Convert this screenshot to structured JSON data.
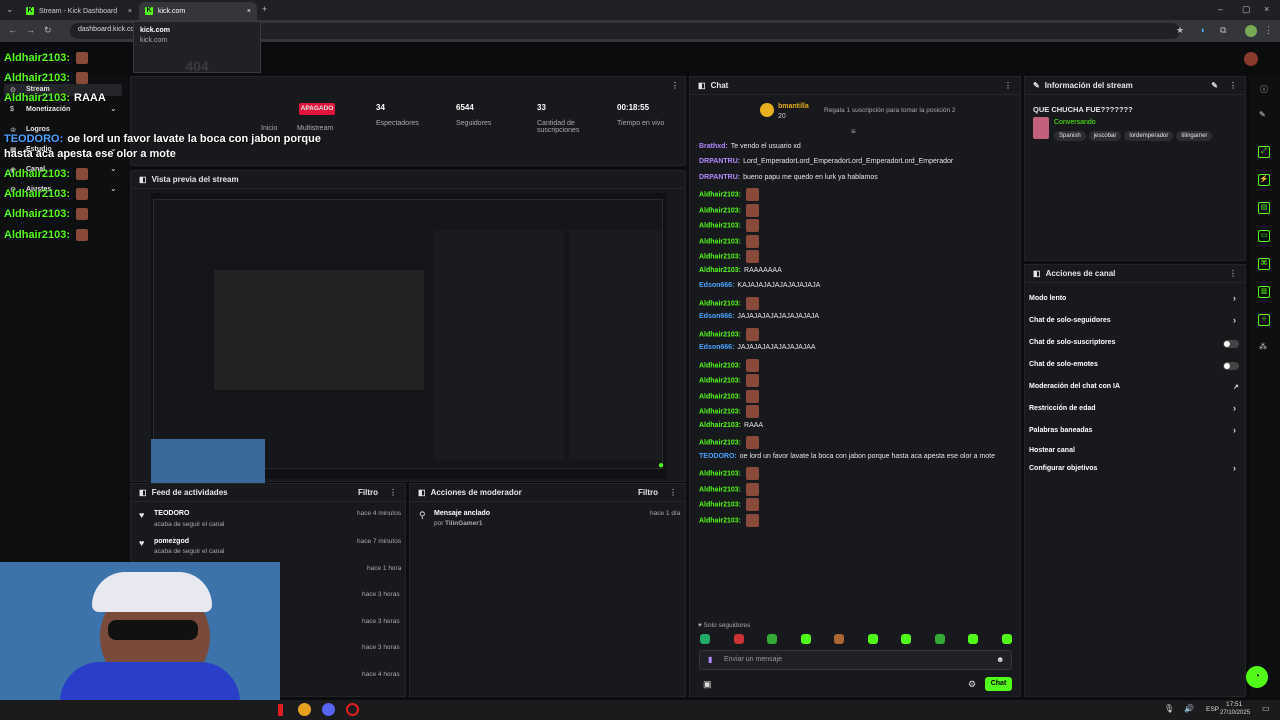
{
  "browser": {
    "tabs": [
      {
        "label": "Stream - Kick Dashboard",
        "active": false
      },
      {
        "label": "kick.com",
        "active": true
      }
    ],
    "url": "dashboard.kick.co",
    "dropdown": {
      "title": "kick.com",
      "subtitle": "kick.com"
    }
  },
  "overlay": {
    "lines": [
      {
        "user": "Aldhair2103:",
        "text": ""
      },
      {
        "user": "Aldhair2103:",
        "text": ""
      },
      {
        "user": "Aldhair2103:",
        "text": "RAAA"
      },
      {
        "user": "TEODORO:",
        "text": "oe lord un favor lavate la boca con jabon porque"
      },
      {
        "user": "",
        "text": "hasta aca apesta ese olor a mote"
      },
      {
        "user": "Aldhair2103:",
        "text": ""
      },
      {
        "user": "Aldhair2103:",
        "text": ""
      },
      {
        "user": "Aldhair2103:",
        "text": ""
      },
      {
        "user": "Aldhair2103:",
        "text": ""
      }
    ],
    "menu": [
      "Stream",
      "Monetización",
      "Logros",
      "Estudio",
      "Canal",
      "Ajustes"
    ]
  },
  "stats": {
    "status": "APAGADO",
    "status_label": "Multistream",
    "left_label": "Inicio",
    "items": [
      {
        "value": "34",
        "label": "Espectadores"
      },
      {
        "value": "6544",
        "label": "Seguidores"
      },
      {
        "value": "33",
        "label": "Cantidad de suscripciones"
      },
      {
        "value": "00:18:55",
        "label": "Tiempo en vivo"
      }
    ]
  },
  "preview": {
    "title": "Vista previa del stream",
    "counter": "404"
  },
  "feed": {
    "title": "Feed de actividades",
    "filter": "Filtro",
    "items": [
      {
        "name": "TEODORO",
        "sub": "acaba de seguir el canal",
        "time": "hace 4 minutos"
      },
      {
        "name": "pomezgod",
        "sub": "acaba de seguir el canal",
        "time": "hace 7 minutos"
      },
      {
        "name": "",
        "sub": "",
        "time": "hace 1 hora"
      },
      {
        "name": "",
        "sub": "",
        "time": "hace 3 horas"
      },
      {
        "name": "",
        "sub": "",
        "time": "hace 3 horas"
      },
      {
        "name": "",
        "sub": "",
        "time": "hace 3 horas"
      },
      {
        "name": "",
        "sub": "",
        "time": "hace 4 horas"
      }
    ]
  },
  "mod": {
    "title": "Acciones de moderador",
    "filter": "Filtro",
    "item": {
      "title": "Mensaje anclado",
      "by": "por",
      "user": "TilinGamer1",
      "time": "hace 1 día"
    }
  },
  "chat": {
    "title": "Chat",
    "pinned": {
      "user": "bmantilla",
      "count": "20",
      "text": "Regala 1 suscripción para tomar la posición 2"
    },
    "messages": [
      {
        "user": "Brathxd:",
        "text": "Te vendo el usuario xd",
        "color": "purple",
        "emotes": 0
      },
      {
        "user": "DRPANTRU:",
        "text": "Lord_EmperadorLord_EmperadorLord_EmperadorLord_Emperador",
        "color": "purple",
        "emotes": 0
      },
      {
        "user": "DRPANTRU:",
        "text": "bueno papu me quedo en lurk ya hablamos",
        "color": "purple",
        "emotes": 0
      },
      {
        "user": "Aldhair2103:",
        "text": "",
        "color": "green",
        "emotes": 1
      },
      {
        "user": "Aldhair2103:",
        "text": "",
        "color": "green",
        "emotes": 1
      },
      {
        "user": "Aldhair2103:",
        "text": "",
        "color": "green",
        "emotes": 1
      },
      {
        "user": "Aldhair2103:",
        "text": "",
        "color": "green",
        "emotes": 1
      },
      {
        "user": "Aldhair2103:",
        "text": "",
        "color": "green",
        "emotes": 1
      },
      {
        "user": "Aldhair2103:",
        "text": "RAAAAAAA",
        "color": "green",
        "emotes": 0
      },
      {
        "user": "Edson666:",
        "text": "KAJAJAJAJAJAJAJAJAJA",
        "color": "blue",
        "emotes": 0
      },
      {
        "user": "Aldhair2103:",
        "text": "",
        "color": "green",
        "emotes": 1
      },
      {
        "user": "Edson666:",
        "text": "JAJAJAJAJAJAJAJAJAJA",
        "color": "blue",
        "emotes": 0
      },
      {
        "user": "Aldhair2103:",
        "text": "",
        "color": "green",
        "emotes": 1
      },
      {
        "user": "Edson666:",
        "text": "JAJAJAJAJAJAJAJAJAA",
        "color": "blue",
        "emotes": 0
      },
      {
        "user": "Aldhair2103:",
        "text": "",
        "color": "green",
        "emotes": 1
      },
      {
        "user": "Aldhair2103:",
        "text": "",
        "color": "green",
        "emotes": 1
      },
      {
        "user": "Aldhair2103:",
        "text": "",
        "color": "green",
        "emotes": 1
      },
      {
        "user": "Aldhair2103:",
        "text": "",
        "color": "green",
        "emotes": 1
      },
      {
        "user": "Aldhair2103:",
        "text": "RAAA",
        "color": "green",
        "emotes": 0
      },
      {
        "user": "Aldhair2103:",
        "text": "",
        "color": "green",
        "emotes": 1
      },
      {
        "user": "TEODORO:",
        "text": "oe lord un favor lavate la boca con jabon porque hasta aca apesta ese olor a mote",
        "color": "blue",
        "emotes": 0
      },
      {
        "user": "Aldhair2103:",
        "text": "",
        "color": "green",
        "emotes": 1
      },
      {
        "user": "Aldhair2103:",
        "text": "",
        "color": "green",
        "emotes": 1
      },
      {
        "user": "Aldhair2103:",
        "text": "",
        "color": "green",
        "emotes": 1
      },
      {
        "user": "Aldhair2103:",
        "text": "",
        "color": "green",
        "emotes": 1
      }
    ],
    "followers_only": "Solo seguidores",
    "placeholder": "Enviar un mensaje",
    "send_label": "Chat"
  },
  "info": {
    "title": "Información del stream",
    "stream_title": "QUE CHUCHA FUE???????",
    "category": "Conversando",
    "tags": [
      "Spanish",
      "jescobar",
      "lordemperador",
      "tilingamer"
    ]
  },
  "actions": {
    "title": "Acciones de canal",
    "items": [
      {
        "label": "Modo lento",
        "control": "chevron"
      },
      {
        "label": "Chat de solo-seguidores",
        "control": "chevron"
      },
      {
        "label": "Chat de solo-suscriptores",
        "control": "toggle"
      },
      {
        "label": "Chat de solo-emotes",
        "control": "toggle"
      },
      {
        "label": "Moderación del chat con IA",
        "control": "external"
      },
      {
        "label": "Restricción de edad",
        "control": "chevron"
      },
      {
        "label": "Palabras baneadas",
        "control": "chevron"
      },
      {
        "label": "Hostear canal",
        "control": "none"
      },
      {
        "label": "Configurar objetivos",
        "control": "chevron"
      }
    ]
  },
  "taskbar": {
    "time": "17:51",
    "date": "27/10/2025",
    "lang": "ESP"
  },
  "colors": {
    "accent": "#53fc18",
    "bg": "#0b0c0e",
    "panel": "#18191c"
  }
}
